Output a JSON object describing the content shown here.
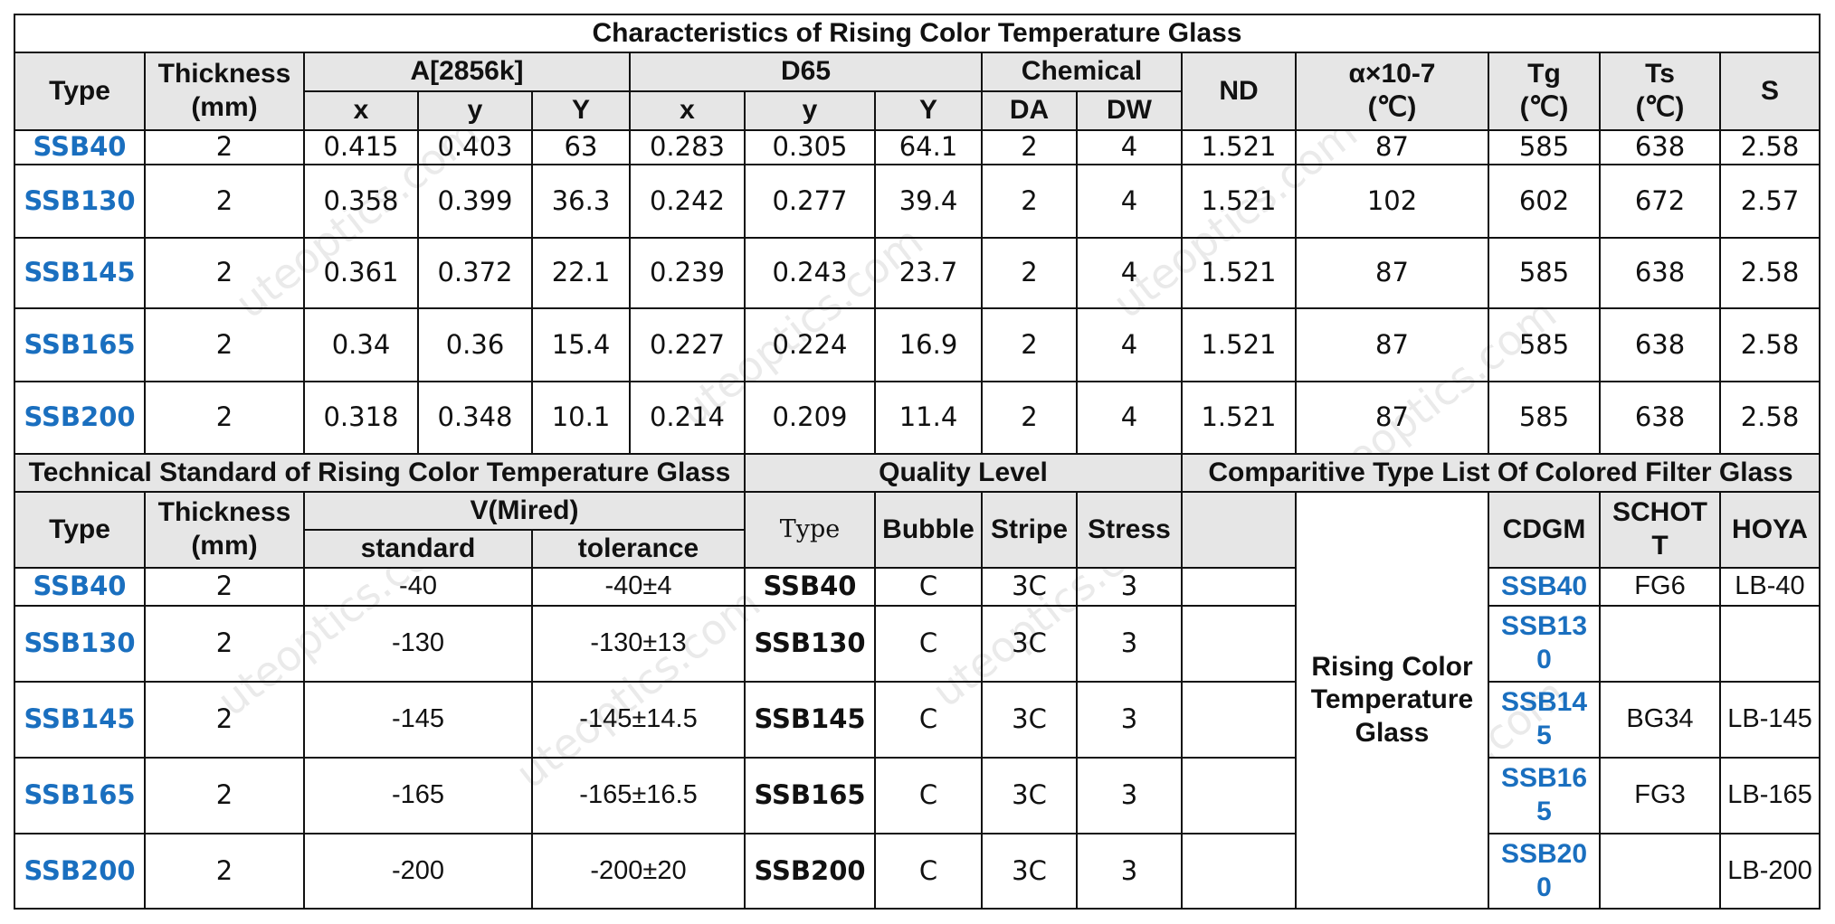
{
  "characteristics": {
    "title": "Characteristics of Rising Color Temperature Glass",
    "headers": {
      "type": "Type",
      "thickness": "Thickness\n(mm)",
      "a2856k": "A[2856k]",
      "d65": "D65",
      "chemical": "Chemical",
      "nd": "ND",
      "alpha": "α×10-7\n(℃)",
      "tg": "Tg\n(℃)",
      "ts": "Ts\n(℃)",
      "s": "S",
      "sub": {
        "ax": "x",
        "ay": "y",
        "aY": "Y",
        "dx": "x",
        "dy": "y",
        "dY": "Y",
        "da": "DA",
        "dw": "DW"
      }
    },
    "rows": [
      {
        "type": "SSB40",
        "thickness": "2",
        "ax": "0.415",
        "ay": "0.403",
        "aY": "63",
        "dx": "0.283",
        "dy": "0.305",
        "dY": "64.1",
        "da": "2",
        "dw": "4",
        "nd": "1.521",
        "alpha": "87",
        "tg": "585",
        "ts": "638",
        "s": "2.58"
      },
      {
        "type": "SSB130",
        "thickness": "2",
        "ax": "0.358",
        "ay": "0.399",
        "aY": "36.3",
        "dx": "0.242",
        "dy": "0.277",
        "dY": "39.4",
        "da": "2",
        "dw": "4",
        "nd": "1.521",
        "alpha": "102",
        "tg": "602",
        "ts": "672",
        "s": "2.57"
      },
      {
        "type": "SSB145",
        "thickness": "2",
        "ax": "0.361",
        "ay": "0.372",
        "aY": "22.1",
        "dx": "0.239",
        "dy": "0.243",
        "dY": "23.7",
        "da": "2",
        "dw": "4",
        "nd": "1.521",
        "alpha": "87",
        "tg": "585",
        "ts": "638",
        "s": "2.58"
      },
      {
        "type": "SSB165",
        "thickness": "2",
        "ax": "0.34",
        "ay": "0.36",
        "aY": "15.4",
        "dx": "0.227",
        "dy": "0.224",
        "dY": "16.9",
        "da": "2",
        "dw": "4",
        "nd": "1.521",
        "alpha": "87",
        "tg": "585",
        "ts": "638",
        "s": "2.58"
      },
      {
        "type": "SSB200",
        "thickness": "2",
        "ax": "0.318",
        "ay": "0.348",
        "aY": "10.1",
        "dx": "0.214",
        "dy": "0.209",
        "dY": "11.4",
        "da": "2",
        "dw": "4",
        "nd": "1.521",
        "alpha": "87",
        "tg": "585",
        "ts": "638",
        "s": "2.58"
      }
    ]
  },
  "technical": {
    "title": "Technical Standard of Rising Color Temperature Glass",
    "headers": {
      "type": "Type",
      "thickness": "Thickness\n(mm)",
      "mired": "V(Mired)",
      "standard": "standard",
      "tolerance": "tolerance"
    },
    "rows": [
      {
        "type": "SSB40",
        "thickness": "2",
        "standard": "-40",
        "tolerance": "-40±4"
      },
      {
        "type": "SSB130",
        "thickness": "2",
        "standard": "-130",
        "tolerance": "-130±13"
      },
      {
        "type": "SSB145",
        "thickness": "2",
        "standard": "-145",
        "tolerance": "-145±14.5"
      },
      {
        "type": "SSB165",
        "thickness": "2",
        "standard": "-165",
        "tolerance": "-165±16.5"
      },
      {
        "type": "SSB200",
        "thickness": "2",
        "standard": "-200",
        "tolerance": "-200±20"
      }
    ]
  },
  "quality": {
    "title": "Quality Level",
    "headers": {
      "type": "Type",
      "bubble": "Bubble",
      "stripe": "Stripe",
      "stress": "Stress"
    },
    "rows": [
      {
        "type": "SSB40",
        "bubble": "C",
        "stripe": "3C",
        "stress": "3"
      },
      {
        "type": "SSB130",
        "bubble": "C",
        "stripe": "3C",
        "stress": "3"
      },
      {
        "type": "SSB145",
        "bubble": "C",
        "stripe": "3C",
        "stress": "3"
      },
      {
        "type": "SSB165",
        "bubble": "C",
        "stripe": "3C",
        "stress": "3"
      },
      {
        "type": "SSB200",
        "bubble": "C",
        "stripe": "3C",
        "stress": "3"
      }
    ]
  },
  "comparative": {
    "title": "Comparitive Type List Of Colored Filter Glass",
    "category": "Rising Color Temperature Glass",
    "headers": {
      "cdgm": "CDGM",
      "schott": "SCHOTT",
      "hoya": "HOYA"
    },
    "rows": [
      {
        "cdgm": "SSB40",
        "schott": "FG6",
        "hoya": "LB-40"
      },
      {
        "cdgm": "SSB130",
        "schott": "",
        "hoya": ""
      },
      {
        "cdgm": "SSB145",
        "schott": "BG34",
        "hoya": "LB-145"
      },
      {
        "cdgm": "SSB165",
        "schott": "FG3",
        "hoya": "LB-165"
      },
      {
        "cdgm": "SSB200",
        "schott": "",
        "hoya": "LB-200"
      }
    ]
  },
  "watermark": {
    "text": "uteoptics.com",
    "logo": "UTE"
  },
  "colors": {
    "header_bg": "#e6e6e6",
    "type_blue": "#1a6fbf",
    "border": "#111111"
  }
}
